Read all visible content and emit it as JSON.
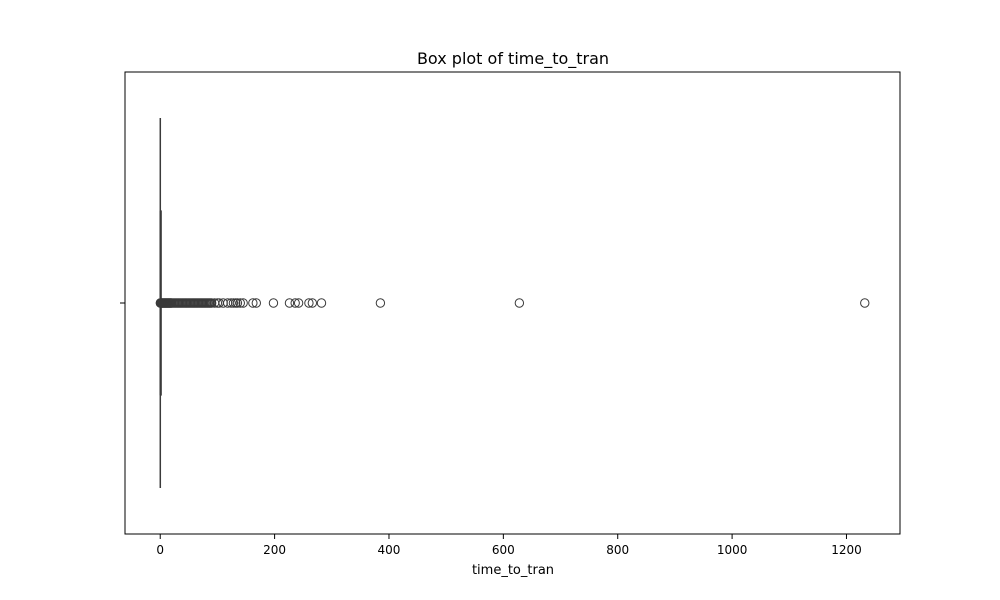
{
  "chart_data": {
    "type": "box",
    "title": "Box plot of time_to_tran",
    "xlabel": "time_to_tran",
    "ylabel": "",
    "xlim": [
      -61.6,
      1293.6
    ],
    "x_ticks": [
      0,
      200,
      400,
      600,
      800,
      1000,
      1200
    ],
    "x_tick_labels": [
      "0",
      "200",
      "400",
      "600",
      "800",
      "1000",
      "1200"
    ],
    "grid": false,
    "box": {
      "min": 0,
      "q1": 0,
      "median": 0,
      "q3": 0.05,
      "max": 0.12
    },
    "outliers": [
      0.2,
      0.5,
      1,
      1.5,
      2,
      3,
      4,
      5,
      6,
      7,
      8,
      9,
      10,
      11,
      12,
      13,
      14,
      15,
      16,
      17,
      18,
      19,
      20,
      22,
      24,
      26,
      28,
      30,
      32,
      34,
      36,
      38,
      40,
      42,
      44,
      46,
      48,
      50,
      52,
      54,
      56,
      58,
      60,
      62,
      64,
      66,
      68,
      70,
      72,
      74,
      76,
      78,
      80,
      82,
      84,
      86,
      88,
      90,
      95,
      100,
      103,
      110,
      118,
      124,
      128,
      132,
      135,
      140,
      145,
      162,
      168,
      198,
      226,
      236,
      242,
      260,
      266,
      282,
      385,
      628,
      1232
    ],
    "colors": {
      "box_fill": "#4c72b0",
      "line": "#3a3a3a",
      "outlier_edge": "#3a3a3a",
      "outlier_fill": "none",
      "frame": "#000000"
    }
  }
}
